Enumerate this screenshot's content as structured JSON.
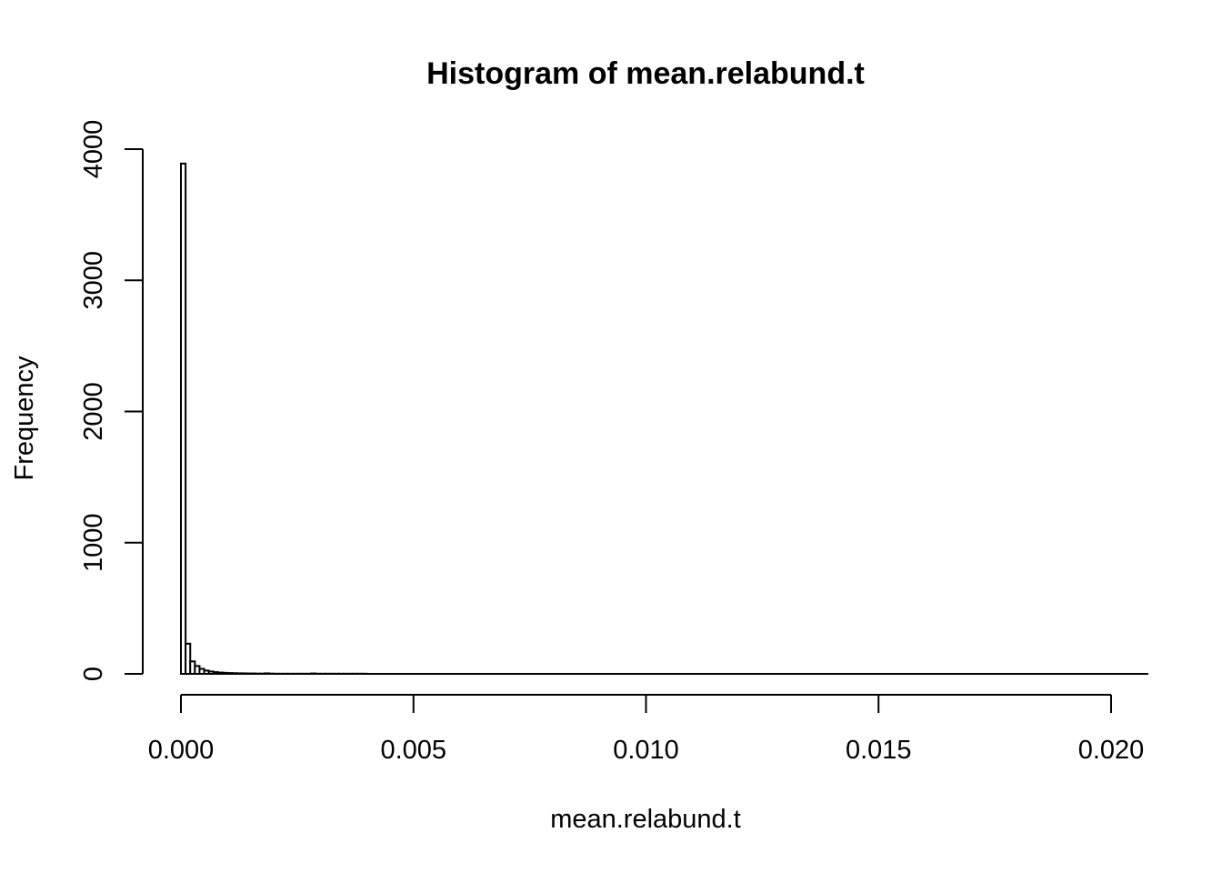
{
  "chart_data": {
    "type": "bar",
    "title": "Histogram of mean.relabund.t",
    "xlabel": "mean.relabund.t",
    "ylabel": "Frequency",
    "xlim": [
      0,
      0.0208
    ],
    "ylim": [
      0,
      4000
    ],
    "grid": false,
    "x_ticks": [
      "0.000",
      "0.005",
      "0.010",
      "0.015",
      "0.020"
    ],
    "x_tick_values": [
      0,
      0.005,
      0.01,
      0.015,
      0.02
    ],
    "y_ticks": [
      "0",
      "1000",
      "2000",
      "3000",
      "4000"
    ],
    "y_tick_values": [
      0,
      1000,
      2000,
      3000,
      4000
    ],
    "bin_width": 0.0001,
    "bins": [
      {
        "x0": 0.0,
        "x1": 0.0001,
        "count": 3890
      },
      {
        "x0": 0.0001,
        "x1": 0.0002,
        "count": 230
      },
      {
        "x0": 0.0002,
        "x1": 0.0003,
        "count": 95
      },
      {
        "x0": 0.0003,
        "x1": 0.0004,
        "count": 60
      },
      {
        "x0": 0.0004,
        "x1": 0.0005,
        "count": 38
      },
      {
        "x0": 0.0005,
        "x1": 0.0006,
        "count": 25
      },
      {
        "x0": 0.0006,
        "x1": 0.0007,
        "count": 18
      },
      {
        "x0": 0.0007,
        "x1": 0.0008,
        "count": 13
      },
      {
        "x0": 0.0008,
        "x1": 0.0009,
        "count": 10
      },
      {
        "x0": 0.0009,
        "x1": 0.001,
        "count": 8
      },
      {
        "x0": 0.001,
        "x1": 0.0011,
        "count": 6
      },
      {
        "x0": 0.0011,
        "x1": 0.0012,
        "count": 5
      },
      {
        "x0": 0.0012,
        "x1": 0.0013,
        "count": 4
      },
      {
        "x0": 0.0013,
        "x1": 0.0014,
        "count": 4
      },
      {
        "x0": 0.0014,
        "x1": 0.0015,
        "count": 3
      },
      {
        "x0": 0.0015,
        "x1": 0.0016,
        "count": 3
      },
      {
        "x0": 0.0016,
        "x1": 0.0017,
        "count": 2
      },
      {
        "x0": 0.0017,
        "x1": 0.0018,
        "count": 2
      },
      {
        "x0": 0.0018,
        "x1": 0.0019,
        "count": 4
      },
      {
        "x0": 0.0019,
        "x1": 0.002,
        "count": 2
      },
      {
        "x0": 0.002,
        "x1": 0.0021,
        "count": 1
      },
      {
        "x0": 0.0021,
        "x1": 0.0022,
        "count": 1
      },
      {
        "x0": 0.0022,
        "x1": 0.0023,
        "count": 1
      },
      {
        "x0": 0.0023,
        "x1": 0.0024,
        "count": 1
      },
      {
        "x0": 0.0024,
        "x1": 0.0025,
        "count": 1
      },
      {
        "x0": 0.0025,
        "x1": 0.0026,
        "count": 1
      },
      {
        "x0": 0.0026,
        "x1": 0.0027,
        "count": 1
      },
      {
        "x0": 0.0027,
        "x1": 0.0028,
        "count": 1
      },
      {
        "x0": 0.0028,
        "x1": 0.0029,
        "count": 3
      },
      {
        "x0": 0.0029,
        "x1": 0.003,
        "count": 1
      },
      {
        "x0": 0.003,
        "x1": 0.0031,
        "count": 1
      },
      {
        "x0": 0.0031,
        "x1": 0.0032,
        "count": 1
      },
      {
        "x0": 0.0032,
        "x1": 0.0033,
        "count": 1
      },
      {
        "x0": 0.0033,
        "x1": 0.0034,
        "count": 1
      },
      {
        "x0": 0.0034,
        "x1": 0.0035,
        "count": 1
      },
      {
        "x0": 0.0035,
        "x1": 0.0036,
        "count": 1
      },
      {
        "x0": 0.0036,
        "x1": 0.0037,
        "count": 1
      },
      {
        "x0": 0.0037,
        "x1": 0.0038,
        "count": 1
      },
      {
        "x0": 0.0038,
        "x1": 0.0039,
        "count": 1
      },
      {
        "x0": 0.0039,
        "x1": 0.004,
        "count": 1
      }
    ]
  }
}
